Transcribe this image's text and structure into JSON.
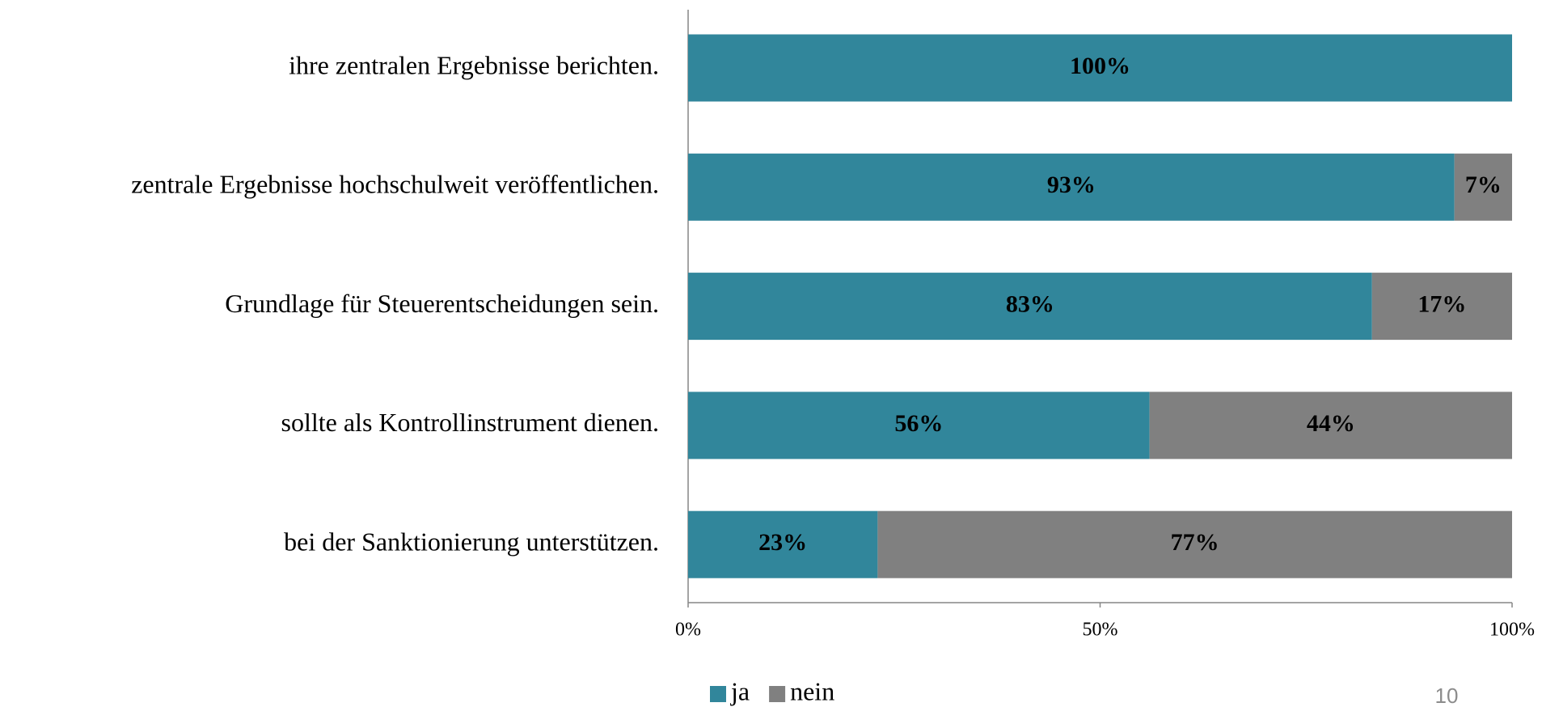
{
  "chart_data": {
    "type": "stacked_barh",
    "categories": [
      "ihre zentralen Ergebnisse berichten.",
      "zentrale Ergebnisse hochschulweit veröffentlichen.",
      "Grundlage für Steuerentscheidungen sein.",
      "sollte als Kontrollinstrument dienen.",
      "bei der Sanktionierung unterstützen."
    ],
    "series": [
      {
        "name": "ja",
        "color": "#31869b",
        "values": [
          100,
          93,
          83,
          56,
          23
        ],
        "value_labels": [
          "100%",
          "93%",
          "83%",
          "56%",
          "23%"
        ]
      },
      {
        "name": "nein",
        "color": "#808080",
        "values": [
          0,
          7,
          17,
          44,
          77
        ],
        "value_labels": [
          null,
          "7%",
          "17%",
          "44%",
          "77%"
        ]
      }
    ],
    "xlim": [
      0,
      100
    ],
    "xticks": [
      {
        "value": 0,
        "label": "0%"
      },
      {
        "value": 50,
        "label": "50%"
      },
      {
        "value": 100,
        "label": "100%"
      }
    ],
    "legend": "bottom",
    "slide_number": "10"
  }
}
